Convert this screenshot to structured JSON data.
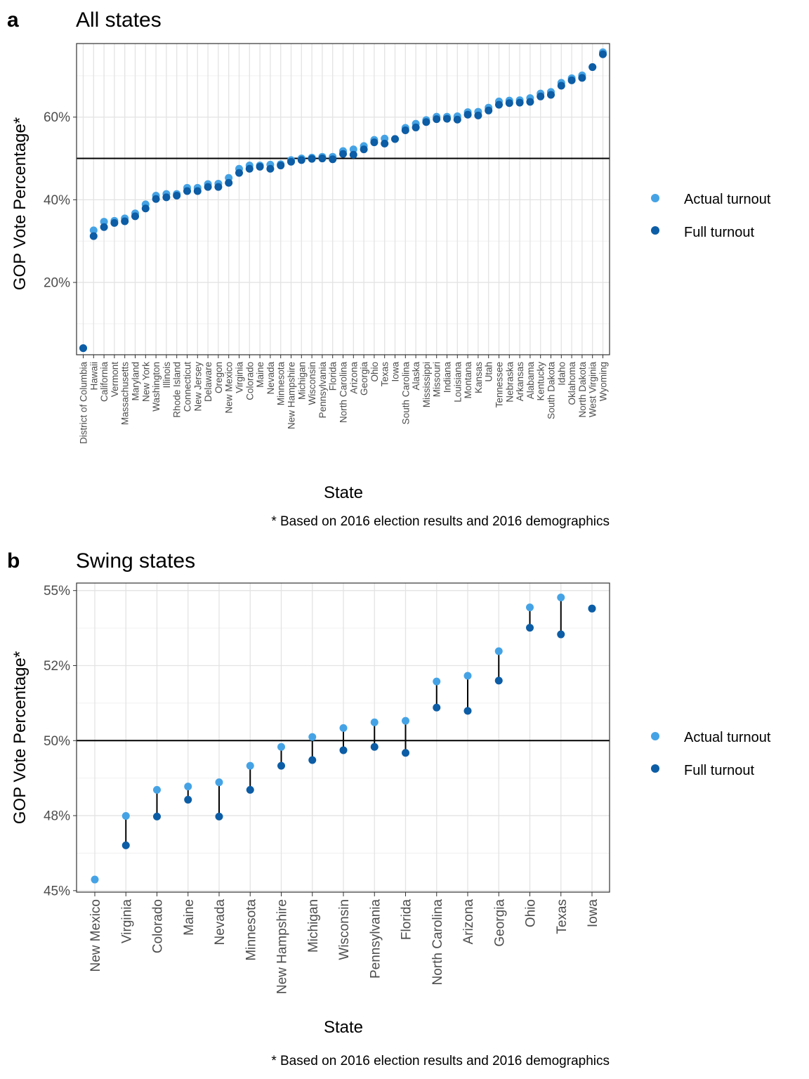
{
  "colors": {
    "actual": "#45a3e5",
    "full": "#0c5da5",
    "connector": "#000000",
    "grid_major": "#e3e3e3",
    "grid_minor": "#f0f0f0",
    "reference_line": "#000000"
  },
  "legend": {
    "items": [
      {
        "label": "Actual turnout",
        "color": "#45a3e5"
      },
      {
        "label": "Full turnout",
        "color": "#0c5da5"
      }
    ]
  },
  "chart_data": [
    {
      "panel": "a",
      "title": "All states",
      "type": "scatter",
      "xlabel": "State",
      "ylabel": "GOP Vote Percentage*",
      "caption": "* Based on 2016 election results and 2016 demographics",
      "ylim": [
        2.5,
        77.8
      ],
      "yticks": [
        20,
        40,
        60
      ],
      "ytick_labels": [
        "20%",
        "40%",
        "60%"
      ],
      "reference_line": 50,
      "grid": true,
      "legend_position": "right",
      "series_names": [
        "Actual turnout",
        "Full turnout"
      ],
      "points": [
        {
          "state": "District of Columbia",
          "actual": 4.1,
          "full": 4.1
        },
        {
          "state": "Hawaii",
          "actual": 32.6,
          "full": 31.2
        },
        {
          "state": "California",
          "actual": 34.7,
          "full": 33.4
        },
        {
          "state": "Vermont",
          "actual": 34.9,
          "full": 34.4
        },
        {
          "state": "Massachusetts",
          "actual": 35.5,
          "full": 34.8
        },
        {
          "state": "Maryland",
          "actual": 36.7,
          "full": 36.0
        },
        {
          "state": "New York",
          "actual": 38.9,
          "full": 37.9
        },
        {
          "state": "Washington",
          "actual": 41.0,
          "full": 40.2
        },
        {
          "state": "Illinois",
          "actual": 41.4,
          "full": 40.6
        },
        {
          "state": "Rhode Island",
          "actual": 41.4,
          "full": 41.0
        },
        {
          "state": "Connecticut",
          "actual": 42.9,
          "full": 42.1
        },
        {
          "state": "New Jersey",
          "actual": 42.9,
          "full": 42.1
        },
        {
          "state": "Delaware",
          "actual": 43.8,
          "full": 43.1
        },
        {
          "state": "Oregon",
          "actual": 43.9,
          "full": 43.1
        },
        {
          "state": "New Mexico",
          "actual": 45.3,
          "full": 44.1
        },
        {
          "state": "Virginia",
          "actual": 47.5,
          "full": 46.5
        },
        {
          "state": "Colorado",
          "actual": 48.3,
          "full": 47.5
        },
        {
          "state": "Maine",
          "actual": 48.3,
          "full": 48.0
        },
        {
          "state": "Nevada",
          "actual": 48.5,
          "full": 47.5
        },
        {
          "state": "Minnesota",
          "actual": 48.6,
          "full": 48.3
        },
        {
          "state": "New Hampshire",
          "actual": 49.6,
          "full": 49.2
        },
        {
          "state": "Michigan",
          "actual": 50.0,
          "full": 49.6
        },
        {
          "state": "Wisconsin",
          "actual": 50.2,
          "full": 49.9
        },
        {
          "state": "Pennsylvania",
          "actual": 50.4,
          "full": 50.0
        },
        {
          "state": "Florida",
          "actual": 50.4,
          "full": 49.8
        },
        {
          "state": "North Carolina",
          "actual": 51.8,
          "full": 51.1
        },
        {
          "state": "Arizona",
          "actual": 52.2,
          "full": 50.9
        },
        {
          "state": "Georgia",
          "actual": 53.0,
          "full": 52.2
        },
        {
          "state": "Ohio",
          "actual": 54.5,
          "full": 53.9
        },
        {
          "state": "Texas",
          "actual": 54.8,
          "full": 53.6
        },
        {
          "state": "Iowa",
          "actual": 54.7,
          "full": 54.7
        },
        {
          "state": "South Carolina",
          "actual": 57.4,
          "full": 56.8
        },
        {
          "state": "Alaska",
          "actual": 58.4,
          "full": 57.5
        },
        {
          "state": "Mississippi",
          "actual": 59.3,
          "full": 58.8
        },
        {
          "state": "Missouri",
          "actual": 60.1,
          "full": 59.5
        },
        {
          "state": "Indiana",
          "actual": 60.1,
          "full": 59.6
        },
        {
          "state": "Louisiana",
          "actual": 60.2,
          "full": 59.4
        },
        {
          "state": "Montana",
          "actual": 61.2,
          "full": 60.6
        },
        {
          "state": "Kansas",
          "actual": 61.3,
          "full": 60.4
        },
        {
          "state": "Utah",
          "actual": 62.3,
          "full": 61.6
        },
        {
          "state": "Tennessee",
          "actual": 63.8,
          "full": 63.0
        },
        {
          "state": "Nebraska",
          "actual": 64.0,
          "full": 63.4
        },
        {
          "state": "Arkansas",
          "actual": 64.1,
          "full": 63.5
        },
        {
          "state": "Alabama",
          "actual": 64.6,
          "full": 63.7
        },
        {
          "state": "Kentucky",
          "actual": 65.7,
          "full": 65.0
        },
        {
          "state": "South Dakota",
          "actual": 66.1,
          "full": 65.4
        },
        {
          "state": "Idaho",
          "actual": 68.3,
          "full": 67.6
        },
        {
          "state": "Oklahoma",
          "actual": 69.4,
          "full": 68.9
        },
        {
          "state": "North Dakota",
          "actual": 70.1,
          "full": 69.5
        },
        {
          "state": "West Virginia",
          "actual": 72.1,
          "full": 72.1
        },
        {
          "state": "Wyoming",
          "actual": 75.7,
          "full": 75.2
        }
      ]
    },
    {
      "panel": "b",
      "title": "Swing states",
      "type": "scatter",
      "xlabel": "State",
      "ylabel": "GOP Vote Percentage*",
      "caption": "* Based on 2016 election results and 2016 demographics",
      "ylim": [
        44.95,
        55.25
      ],
      "yticks": [
        45,
        47.5,
        50,
        52.5,
        55
      ],
      "ytick_labels": [
        "45%",
        "48%",
        "50%",
        "52%",
        "55%"
      ],
      "reference_line": 50,
      "grid": true,
      "legend_position": "right",
      "series_names": [
        "Actual turnout",
        "Full turnout"
      ],
      "points": [
        {
          "state": "New Mexico",
          "actual": 45.37,
          "full": null
        },
        {
          "state": "Virginia",
          "actual": 47.49,
          "full": 46.51
        },
        {
          "state": "Colorado",
          "actual": 48.36,
          "full": 47.47
        },
        {
          "state": "Maine",
          "actual": 48.47,
          "full": 48.03
        },
        {
          "state": "Nevada",
          "actual": 48.61,
          "full": 47.47
        },
        {
          "state": "Minnesota",
          "actual": 49.16,
          "full": 48.36
        },
        {
          "state": "New Hampshire",
          "actual": 49.79,
          "full": 49.16
        },
        {
          "state": "Michigan",
          "actual": 50.12,
          "full": 49.35
        },
        {
          "state": "Wisconsin",
          "actual": 50.42,
          "full": 49.68
        },
        {
          "state": "Pennsylvania",
          "actual": 50.61,
          "full": 49.79
        },
        {
          "state": "Florida",
          "actual": 50.66,
          "full": 49.59
        },
        {
          "state": "North Carolina",
          "actual": 51.97,
          "full": 51.1
        },
        {
          "state": "Arizona",
          "actual": 52.16,
          "full": 50.99
        },
        {
          "state": "Georgia",
          "actual": 52.98,
          "full": 52.0
        },
        {
          "state": "Ohio",
          "actual": 54.44,
          "full": 53.76
        },
        {
          "state": "Texas",
          "actual": 54.77,
          "full": 53.54
        },
        {
          "state": "Iowa",
          "actual": 54.4,
          "full": 54.4
        }
      ]
    }
  ]
}
